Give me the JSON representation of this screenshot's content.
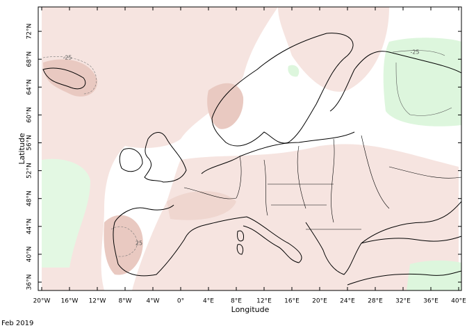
{
  "map": {
    "x_axis_label": "Longitude",
    "y_axis_label": "Latitude",
    "x_ticks": [
      "20°W",
      "16°W",
      "12°W",
      "8°W",
      "4°W",
      "0°",
      "4°E",
      "8°E",
      "12°E",
      "16°E",
      "20°E",
      "24°E",
      "28°E",
      "32°E",
      "36°E",
      "40°E"
    ],
    "y_ticks": [
      "36°N",
      "40°N",
      "44°N",
      "48°N",
      "52°N",
      "56°N",
      "60°N",
      "64°N",
      "68°N",
      "72°N"
    ],
    "contour_labels": [
      "-25",
      "-25",
      "25"
    ],
    "caption": "Feb 2019"
  }
}
